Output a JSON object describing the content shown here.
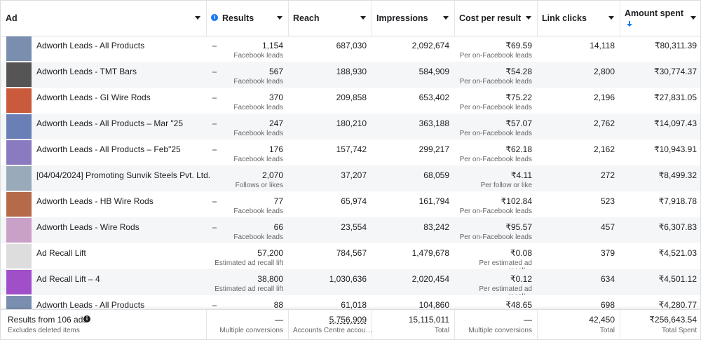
{
  "table": {
    "headers": {
      "ad": "Ad",
      "results": "Results",
      "reach": "Reach",
      "impressions": "Impressions",
      "cost": "Cost per result",
      "clicks": "Link clicks",
      "spent": "Amount spent"
    },
    "rows": [
      {
        "ad": "Adworth Leads - All Products",
        "results": "1,154",
        "results_sub": "Facebook leads",
        "reach": "687,030",
        "impressions": "2,092,674",
        "cost": "₹69.59",
        "cost_sub": "Per on-Facebook leads",
        "clicks": "14,118",
        "spent": "₹80,311.39"
      },
      {
        "ad": "Adworth Leads - TMT Bars",
        "results": "567",
        "results_sub": "Facebook leads",
        "reach": "188,930",
        "impressions": "584,909",
        "cost": "₹54.28",
        "cost_sub": "Per on-Facebook leads",
        "clicks": "2,800",
        "spent": "₹30,774.37"
      },
      {
        "ad": "Adworth Leads - GI Wire Rods",
        "results": "370",
        "results_sub": "Facebook leads",
        "reach": "209,858",
        "impressions": "653,402",
        "cost": "₹75.22",
        "cost_sub": "Per on-Facebook leads",
        "clicks": "2,196",
        "spent": "₹27,831.05"
      },
      {
        "ad": "Adworth Leads - All Products – Mar \"25",
        "results": "247",
        "results_sub": "Facebook leads",
        "reach": "180,210",
        "impressions": "363,188",
        "cost": "₹57.07",
        "cost_sub": "Per on-Facebook leads",
        "clicks": "2,762",
        "spent": "₹14,097.43"
      },
      {
        "ad": "Adworth Leads - All Products – Feb\"25",
        "results": "176",
        "results_sub": "Facebook leads",
        "reach": "157,742",
        "impressions": "299,217",
        "cost": "₹62.18",
        "cost_sub": "Per on-Facebook leads",
        "clicks": "2,162",
        "spent": "₹10,943.91"
      },
      {
        "ad": "[04/04/2024] Promoting Sunvik Steels Pvt. Ltd.",
        "results": "2,070",
        "results_sub": "Follows or likes",
        "reach": "37,207",
        "impressions": "68,059",
        "cost": "₹4.11",
        "cost_sub": "Per follow or like",
        "clicks": "272",
        "spent": "₹8,499.32"
      },
      {
        "ad": "Adworth Leads - HB Wire Rods",
        "results": "77",
        "results_sub": "Facebook leads",
        "reach": "65,974",
        "impressions": "161,794",
        "cost": "₹102.84",
        "cost_sub": "Per on-Facebook leads",
        "clicks": "523",
        "spent": "₹7,918.78"
      },
      {
        "ad": "Adworth Leads - Wire Rods",
        "results": "66",
        "results_sub": "Facebook leads",
        "reach": "23,554",
        "impressions": "83,242",
        "cost": "₹95.57",
        "cost_sub": "Per on-Facebook leads",
        "clicks": "457",
        "spent": "₹6,307.83"
      },
      {
        "ad": "Ad Recall Lift",
        "results": "57,200",
        "results_sub": "Estimated ad recall lift …",
        "reach": "784,567",
        "impressions": "1,479,678",
        "cost": "₹0.08",
        "cost_sub": "Per estimated ad recall…",
        "clicks": "379",
        "spent": "₹4,521.03"
      },
      {
        "ad": "Ad Recall Lift – 4",
        "results": "38,800",
        "results_sub": "Estimated ad recall lift …",
        "reach": "1,030,636",
        "impressions": "2,020,454",
        "cost": "₹0.12",
        "cost_sub": "Per estimated ad recall…",
        "clicks": "634",
        "spent": "₹4,501.12"
      },
      {
        "ad": "Adworth Leads - All Products",
        "results": "88",
        "reach": "61,018",
        "impressions": "104,860",
        "cost": "₹48.65",
        "clicks": "698",
        "spent": "₹4,280.77"
      }
    ],
    "footer": {
      "ad": "Results from 106 ads",
      "ad_sub": "Excludes deleted items",
      "results": "—",
      "results_sub": "Multiple conversions",
      "reach": "5,756,909",
      "reach_sub": "Accounts Centre accou…",
      "impressions": "15,115,011",
      "impressions_sub": "Total",
      "cost": "—",
      "cost_sub": "Multiple conversions",
      "clicks": "42,450",
      "clicks_sub": "Total",
      "spent": "₹256,643.54",
      "spent_sub": "Total Spent"
    }
  }
}
